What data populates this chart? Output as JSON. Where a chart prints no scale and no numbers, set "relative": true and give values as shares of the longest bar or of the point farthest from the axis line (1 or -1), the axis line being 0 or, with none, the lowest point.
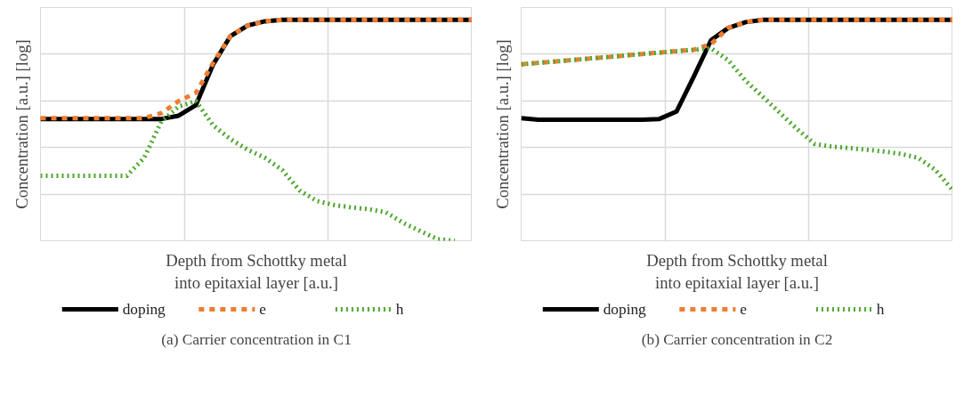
{
  "chart_data": [
    {
      "type": "line",
      "relative": true,
      "xlabel": "Depth from Schottky metal into epitaxial layer [a.u.]",
      "ylabel": "Concentration [a.u.] [log]",
      "grid": true,
      "legend": "bottom",
      "annotations": [
        "(a) Carrier concentration in C1"
      ],
      "categories": [
        null,
        null,
        null,
        null,
        null,
        null,
        null,
        null,
        null,
        null,
        null,
        null,
        null,
        null,
        null,
        null,
        null,
        null,
        null,
        null,
        null,
        null,
        null,
        null,
        null,
        null
      ],
      "series": [
        {
          "name": "doping",
          "color": "#000000",
          "line_style": "solid",
          "values": [
            0.551,
            0.551,
            0.551,
            0.551,
            0.551,
            0.551,
            0.551,
            0.551,
            0.566,
            0.614,
            0.798,
            0.926,
            0.974,
            0.993,
            1,
            1,
            1,
            1,
            1,
            1,
            1,
            1,
            1,
            1,
            1,
            1
          ]
        },
        {
          "name": "e",
          "color": "#ed7d31",
          "line_style": "dashed",
          "values": [
            0.555,
            0.555,
            0.555,
            0.555,
            0.555,
            0.555,
            0.555,
            0.577,
            0.632,
            0.669,
            0.805,
            0.926,
            0.974,
            0.993,
            1,
            1,
            1,
            1,
            1,
            1,
            1,
            1,
            1,
            1,
            1,
            1
          ]
        },
        {
          "name": "h",
          "color": "#4ea72e",
          "line_style": "dotted",
          "values": [
            0.294,
            0.294,
            0.294,
            0.294,
            0.294,
            0.294,
            0.375,
            0.54,
            0.607,
            0.632,
            0.522,
            0.46,
            0.412,
            0.375,
            0.32,
            0.228,
            0.18,
            0.162,
            0.151,
            0.143,
            0.129,
            0.081,
            0.044,
            0.007,
            0,
            null
          ]
        }
      ]
    },
    {
      "type": "line",
      "relative": true,
      "xlabel": "Depth from Schottky metal into epitaxial layer [a.u.]",
      "ylabel": "Concentration [a.u.] [log]",
      "grid": true,
      "legend": "bottom",
      "annotations": [
        "(b) Carrier concentration in C2"
      ],
      "categories": [
        null,
        null,
        null,
        null,
        null,
        null,
        null,
        null,
        null,
        null,
        null,
        null,
        null,
        null,
        null,
        null,
        null,
        null,
        null,
        null,
        null,
        null,
        null,
        null,
        null,
        null
      ],
      "series": [
        {
          "name": "doping",
          "color": "#000000",
          "line_style": "solid",
          "values": [
            0.555,
            0.548,
            0.548,
            0.548,
            0.548,
            0.548,
            0.548,
            0.548,
            0.551,
            0.585,
            0.743,
            0.908,
            0.963,
            0.989,
            1,
            1,
            1,
            1,
            1,
            1,
            1,
            1,
            1,
            1,
            1,
            1
          ]
        },
        {
          "name": "e",
          "color": "#ed7d31",
          "line_style": "dashed",
          "values": [
            0.798,
            0.805,
            0.811,
            0.818,
            0.825,
            0.831,
            0.838,
            0.845,
            0.851,
            0.858,
            0.864,
            0.89,
            0.963,
            0.989,
            1,
            1,
            1,
            1,
            1,
            1,
            1,
            1,
            1,
            1,
            1,
            1
          ]
        },
        {
          "name": "h",
          "color": "#4ea72e",
          "line_style": "dotted",
          "values": [
            0.798,
            0.805,
            0.811,
            0.818,
            0.825,
            0.831,
            0.838,
            0.845,
            0.851,
            0.858,
            0.864,
            0.871,
            0.816,
            0.724,
            0.651,
            0.577,
            0.504,
            0.438,
            0.426,
            0.419,
            0.412,
            0.404,
            0.393,
            0.375,
            0.32,
            0.228
          ]
        }
      ]
    }
  ]
}
